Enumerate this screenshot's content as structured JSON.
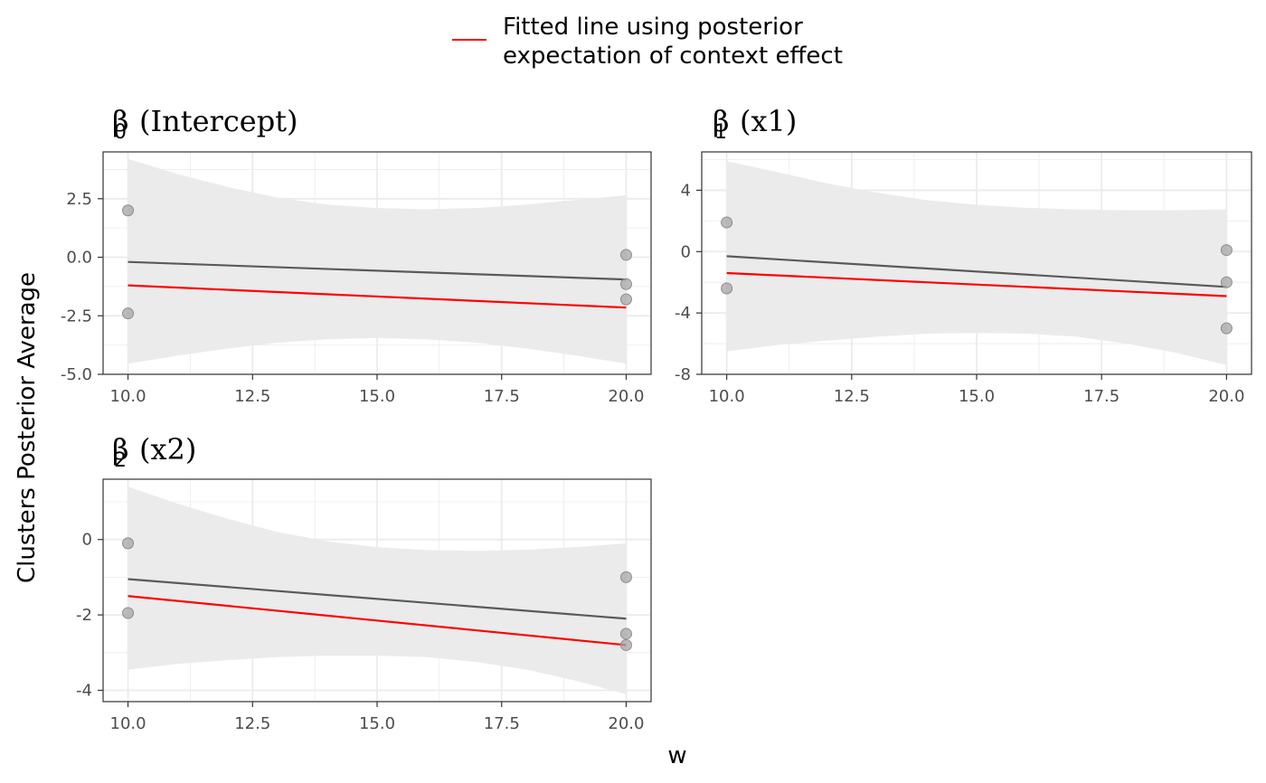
{
  "legend": {
    "line1": "Fitted line using posterior",
    "line2": "expectation of context effect",
    "color": "#ff0000"
  },
  "axes": {
    "ylabel": "Clusters Posterior Average",
    "xlabel": "w"
  },
  "colors": {
    "ribbon": "#ebebeb",
    "smooth_line": "#5a5a5a",
    "fitted_line": "#ff0000",
    "points": "#a6a6a6",
    "grid": "#ebebeb",
    "panel_border": "#333333"
  },
  "chart_data": [
    {
      "type": "scatter",
      "title_symbol": "β",
      "title_subscript": "0",
      "title_term": "(Intercept)",
      "xlim": [
        9.5,
        20.5
      ],
      "ylim": [
        -5.0,
        4.5
      ],
      "x_ticks": [
        10.0,
        12.5,
        15.0,
        17.5,
        20.0
      ],
      "x_tick_labels": [
        "10.0",
        "12.5",
        "15.0",
        "17.5",
        "20.0"
      ],
      "y_ticks": [
        -5.0,
        -2.5,
        0.0,
        2.5
      ],
      "y_tick_labels": [
        "-5.0",
        "-2.5",
        "0.0",
        "2.5"
      ],
      "points": [
        {
          "x": 10,
          "y": 2.0
        },
        {
          "x": 10,
          "y": -2.4
        },
        {
          "x": 20,
          "y": 0.1
        },
        {
          "x": 20,
          "y": -1.15
        },
        {
          "x": 20,
          "y": -1.8
        }
      ],
      "smooth_line": {
        "x": [
          10,
          20
        ],
        "y": [
          -0.2,
          -0.95
        ]
      },
      "ribbon": {
        "x": [
          10,
          11,
          12,
          13,
          14,
          15,
          16,
          17,
          18,
          19,
          20
        ],
        "lower": [
          -4.55,
          -4.2,
          -3.9,
          -3.65,
          -3.5,
          -3.45,
          -3.5,
          -3.65,
          -3.9,
          -4.2,
          -4.55
        ],
        "upper": [
          4.2,
          3.55,
          3.0,
          2.55,
          2.25,
          2.1,
          2.05,
          2.1,
          2.25,
          2.45,
          2.65
        ]
      },
      "fitted_line": {
        "x": [
          10,
          20
        ],
        "y": [
          -1.2,
          -2.15
        ]
      }
    },
    {
      "type": "scatter",
      "title_symbol": "β",
      "title_subscript": "1",
      "title_term": "(x1)",
      "xlim": [
        9.5,
        20.5
      ],
      "ylim": [
        -8.0,
        6.5
      ],
      "x_ticks": [
        10.0,
        12.5,
        15.0,
        17.5,
        20.0
      ],
      "x_tick_labels": [
        "10.0",
        "12.5",
        "15.0",
        "17.5",
        "20.0"
      ],
      "y_ticks": [
        -8,
        -4,
        0,
        4
      ],
      "y_tick_labels": [
        "-8",
        "-4",
        "0",
        "4"
      ],
      "points": [
        {
          "x": 10,
          "y": 1.9
        },
        {
          "x": 10,
          "y": -2.4
        },
        {
          "x": 20,
          "y": 0.1
        },
        {
          "x": 20,
          "y": -2.0
        },
        {
          "x": 20,
          "y": -5.0
        }
      ],
      "smooth_line": {
        "x": [
          10,
          20
        ],
        "y": [
          -0.3,
          -2.3
        ]
      },
      "ribbon": {
        "x": [
          10,
          11,
          12,
          13,
          14,
          15,
          16,
          17,
          18,
          19,
          20
        ],
        "lower": [
          -6.5,
          -6.1,
          -5.8,
          -5.55,
          -5.35,
          -5.3,
          -5.35,
          -5.55,
          -6.0,
          -6.6,
          -7.4
        ],
        "upper": [
          5.9,
          5.2,
          4.45,
          3.85,
          3.35,
          3.05,
          2.85,
          2.75,
          2.7,
          2.7,
          2.75
        ]
      },
      "fitted_line": {
        "x": [
          10,
          20
        ],
        "y": [
          -1.4,
          -2.9
        ]
      }
    },
    {
      "type": "scatter",
      "title_symbol": "β",
      "title_subscript": "2",
      "title_term": "(x2)",
      "xlim": [
        9.5,
        20.5
      ],
      "ylim": [
        -4.3,
        1.6
      ],
      "x_ticks": [
        10.0,
        12.5,
        15.0,
        17.5,
        20.0
      ],
      "x_tick_labels": [
        "10.0",
        "12.5",
        "15.0",
        "17.5",
        "20.0"
      ],
      "y_ticks": [
        -4,
        -2,
        0
      ],
      "y_tick_labels": [
        "-4",
        "-2",
        "0"
      ],
      "points": [
        {
          "x": 10,
          "y": -0.1
        },
        {
          "x": 10,
          "y": -1.95
        },
        {
          "x": 20,
          "y": -1.0
        },
        {
          "x": 20,
          "y": -2.5
        },
        {
          "x": 20,
          "y": -2.8
        }
      ],
      "smooth_line": {
        "x": [
          10,
          20
        ],
        "y": [
          -1.05,
          -2.1
        ]
      },
      "ribbon": {
        "x": [
          10,
          11,
          12,
          13,
          14,
          15,
          16,
          17,
          18,
          19,
          20
        ],
        "lower": [
          -3.45,
          -3.3,
          -3.2,
          -3.12,
          -3.08,
          -3.08,
          -3.12,
          -3.25,
          -3.45,
          -3.75,
          -4.1
        ],
        "upper": [
          1.4,
          0.95,
          0.55,
          0.2,
          -0.05,
          -0.2,
          -0.28,
          -0.3,
          -0.27,
          -0.2,
          -0.1
        ]
      },
      "fitted_line": {
        "x": [
          10,
          20
        ],
        "y": [
          -1.5,
          -2.8
        ]
      }
    }
  ]
}
